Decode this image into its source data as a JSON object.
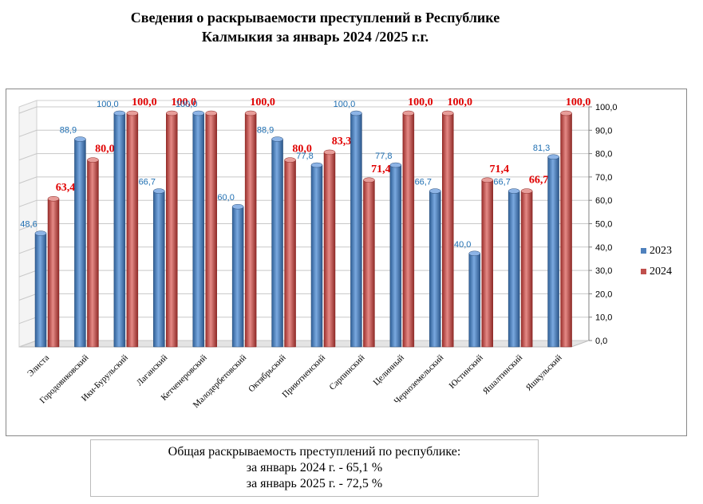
{
  "chart_data": {
    "type": "bar",
    "title": "Сведения о раскрываемости  преступлений  в  Республике Калмыкия  за январь 2024 /2025 г.г.",
    "title_lines": [
      "Сведения о раскрываемости  преступлений  в  Республике",
      "Калмыкия  за январь 2024 /2025 г.г."
    ],
    "categories": [
      "Элиста",
      "Городовиковский",
      "Ики-Бурульский",
      "Лаганский",
      "Кетченеровский",
      "Малодербетовский",
      "Октябрьский",
      "Приютненский",
      "Сарпинский",
      "Целинный",
      "Черноземельский",
      "Юстинский",
      "Яшалтинский",
      "Яшкульский"
    ],
    "series": [
      {
        "name": "2023",
        "color": "#4f81bd",
        "values": [
          48.6,
          88.9,
          100.0,
          66.7,
          100.0,
          60.0,
          88.9,
          77.8,
          100.0,
          77.8,
          66.7,
          40.0,
          66.7,
          81.3
        ],
        "labels": [
          "48,6",
          "88,9",
          "100,0",
          "66,7",
          "100,0",
          "60,0",
          "88,9",
          "77,8",
          "100,0",
          "77,8",
          "66,7",
          "40,0",
          "66,7",
          "81,3"
        ]
      },
      {
        "name": "2024",
        "color": "#c0504d",
        "values": [
          63.4,
          80.0,
          100.0,
          100.0,
          100.0,
          100.0,
          80.0,
          83.3,
          71.4,
          100.0,
          100.0,
          71.4,
          66.7,
          100.0
        ],
        "labels": [
          "63,4",
          "80,0",
          "100,0",
          "100,0",
          "",
          "100,0",
          "80,0",
          "83,3",
          "71,4",
          "100,0",
          "100,0",
          "71,4",
          "66,7",
          "100,0"
        ]
      }
    ],
    "ylim": [
      0,
      100
    ],
    "yticks": [
      "0,0",
      "10,0",
      "20,0",
      "30,0",
      "40,0",
      "50,0",
      "60,0",
      "70,0",
      "80,0",
      "90,0",
      "100,0"
    ],
    "ytick_values": [
      0,
      10,
      20,
      30,
      40,
      50,
      60,
      70,
      80,
      90,
      100
    ],
    "xlabel": "",
    "ylabel": "",
    "legend": [
      "2023",
      "2024"
    ],
    "legend_position": "right",
    "grid": true
  },
  "summary": {
    "line1": "Общая раскрываемость преступлений  по республике:",
    "line2": "за январь 2024  г. - 65,1  %",
    "line3": "за январь 2025  г. - 72,5 %"
  }
}
